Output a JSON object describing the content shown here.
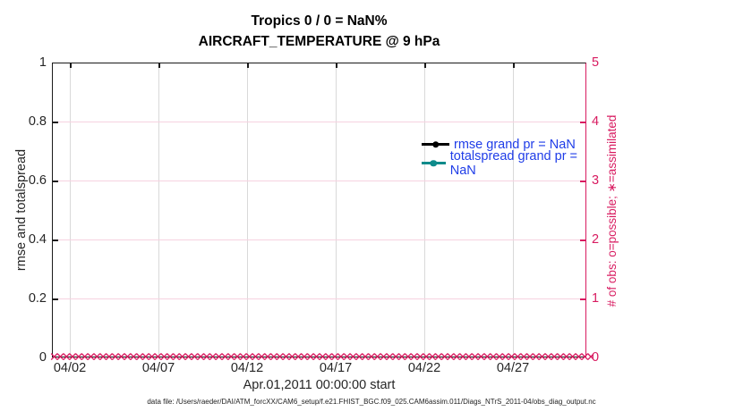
{
  "colors": {
    "crimson": "#D81B60",
    "pinkgrid": "#f6d2e0",
    "teal": "#0E8B8B",
    "blue": "#1F3DE8",
    "axis": "#1a1a1a"
  },
  "title": {
    "line1": "Tropics 0 / 0 = NaN%",
    "line2": "AIRCRAFT_TEMPERATURE @ 9 hPa"
  },
  "legend": {
    "items": [
      {
        "label": "rmse grand pr = NaN",
        "series_color": "#000000",
        "marker": "filled-circle"
      },
      {
        "label": "totalspread grand pr = NaN",
        "series_color": "#0E8B8B",
        "marker": "filled-circle"
      }
    ]
  },
  "axes": {
    "x": {
      "label": "Apr.01,2011 00:00:00 start",
      "ticks": [
        "04/02",
        "04/07",
        "04/12",
        "04/17",
        "04/22",
        "04/27"
      ]
    },
    "y_left": {
      "label": "rmse and totalspread",
      "ticks_top_to_bottom": [
        "1",
        "0.8",
        "0.6",
        "0.4",
        "0.2",
        "0"
      ]
    },
    "y_right": {
      "label": "# of obs: o=possible; ∗=assimilated",
      "ticks_top_to_bottom": [
        "5",
        "4",
        "3",
        "2",
        "1",
        "0"
      ]
    }
  },
  "markers": {
    "char": "✕",
    "count": 130,
    "meaning": "assimilated obs count = 0 at every time"
  },
  "footer": "data file: /Users/raeder/DAI/ATM_forcXX/CAM6_setup/f.e21.FHIST_BGC.f09_025.CAM6assim.011/Diags_NTrS_2011-04/obs_diag_output.nc",
  "chart_data": {
    "type": "line",
    "title": "Tropics 0 / 0 = NaN%",
    "subtitle": "AIRCRAFT_TEMPERATURE @ 9 hPa",
    "xlabel": "Apr.01,2011 00:00:00 start",
    "ylabel_left": "rmse and totalspread",
    "ylabel_right": "# of obs: o=possible; ∗=assimilated",
    "x_ticks": [
      "04/02",
      "04/07",
      "04/12",
      "04/17",
      "04/22",
      "04/27"
    ],
    "x_range": [
      "2011-04-01 00:00",
      "2011-05-01 00:00"
    ],
    "ylim_left": [
      0,
      1
    ],
    "ylim_right": [
      0,
      5
    ],
    "grid": true,
    "legend_position": "upper-right-inside, no box",
    "series": [
      {
        "name": "rmse grand pr = NaN",
        "axis": "left",
        "color": "#000000",
        "values": "all NaN (nothing plotted)"
      },
      {
        "name": "totalspread grand pr = NaN",
        "axis": "left",
        "color": "#0E8B8B",
        "values": "all NaN (nothing plotted)"
      },
      {
        "name": "assimilated observation count (x markers)",
        "axis": "right",
        "color": "#D81B60",
        "constant_value": 0,
        "note": "dense × markers at y=0 across entire x range"
      }
    ]
  }
}
